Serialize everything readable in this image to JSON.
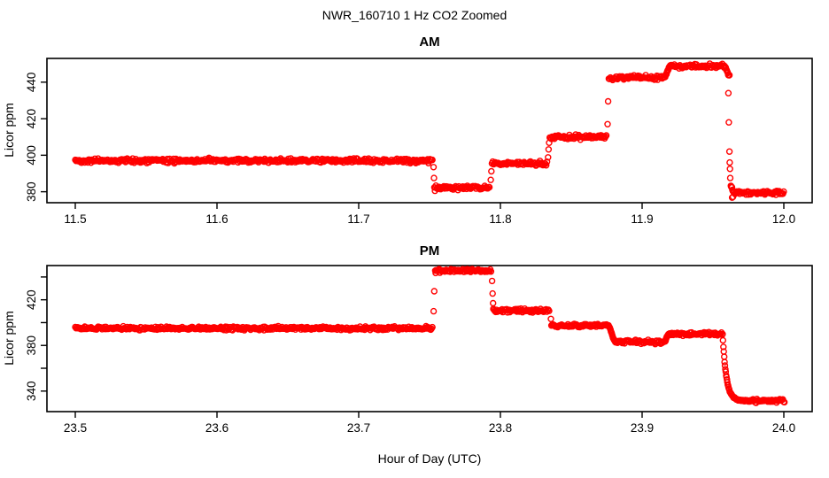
{
  "header": {
    "title": "NWR_160710  1 Hz CO2 Zoomed"
  },
  "footer": {
    "xlabel": "Hour of Day (UTC)"
  },
  "style": {
    "point_color": "#ff0000",
    "axis_color": "#000000",
    "background": "#ffffff",
    "marker": "open-circle",
    "marker_radius": 3.0,
    "marker_stroke": 1.4,
    "seed": 42,
    "sample_step_hours": 0.000555
  },
  "chart_data": [
    {
      "type": "scatter",
      "title": "AM",
      "ylabel": "Licor ppm",
      "series_name": "1 Hz CO2",
      "grid": false,
      "legend": "none",
      "xlim": [
        11.48,
        12.02
      ],
      "ylim": [
        374,
        453
      ],
      "xticks": [
        11.5,
        11.6,
        11.7,
        11.8,
        11.9,
        12.0
      ],
      "yticks": [
        {
          "v": 380,
          "label": "380"
        },
        {
          "v": 400,
          "label": "400"
        },
        {
          "v": 420,
          "label": "420"
        },
        {
          "v": 440,
          "label": "440"
        }
      ],
      "noise_sd": 0.55,
      "segments": [
        {
          "t0": 11.5,
          "t1": 11.7525,
          "level": 397.0
        },
        {
          "t0": 11.7534,
          "t1": 11.7928,
          "level": 382.3
        },
        {
          "t0": 11.794,
          "t1": 11.833,
          "level": 395.5
        },
        {
          "t0": 11.8348,
          "t1": 11.8752,
          "level": 410.0
        },
        {
          "t0": 11.8765,
          "t1": 11.9155,
          "level": 442.5
        },
        {
          "t0": 11.92,
          "t1": 11.958,
          "level": 448.8
        },
        {
          "t0": 11.965,
          "t1": 12.0005,
          "level": 379.5
        }
      ],
      "ramps": [
        {
          "shape": "smooth",
          "t0": 11.9155,
          "t1": 11.92,
          "v0": 442.5,
          "v1": 448.8
        },
        {
          "shape": "smooth",
          "t0": 11.958,
          "t1": 11.9618,
          "v0": 448.8,
          "v1": 443.5
        },
        {
          "shape": "smooth",
          "t0": 11.9626,
          "t1": 11.965,
          "v0": 383.0,
          "v1": 379.5
        }
      ],
      "points": [
        [
          11.7528,
          393.5
        ],
        [
          11.7531,
          387.5
        ],
        [
          11.7538,
          380.5
        ],
        [
          11.7932,
          386.5
        ],
        [
          11.7936,
          391.2
        ],
        [
          11.8336,
          398.8
        ],
        [
          11.834,
          403.2
        ],
        [
          11.8344,
          406.8
        ],
        [
          11.8756,
          417.0
        ],
        [
          11.876,
          429.5
        ],
        [
          11.9609,
          434.0
        ],
        [
          11.9612,
          418.0
        ],
        [
          11.9616,
          402.0
        ],
        [
          11.9618,
          396.0
        ],
        [
          11.962,
          392.5
        ],
        [
          11.9622,
          387.5
        ],
        [
          11.9635,
          376.8
        ],
        [
          11.9641,
          377.2
        ]
      ]
    },
    {
      "type": "scatter",
      "title": "PM",
      "ylabel": "Licor ppm",
      "series_name": "1 Hz CO2",
      "grid": false,
      "legend": "none",
      "xlim": [
        23.48,
        24.02
      ],
      "ylim": [
        322,
        450
      ],
      "xticks": [
        23.5,
        23.6,
        23.7,
        23.8,
        23.9,
        24.0
      ],
      "yticks": [
        {
          "v": 340,
          "label": "340"
        },
        {
          "v": 360,
          "label": ""
        },
        {
          "v": 380,
          "label": "380"
        },
        {
          "v": 400,
          "label": ""
        },
        {
          "v": 420,
          "label": "420"
        },
        {
          "v": 440,
          "label": ""
        }
      ],
      "noise_sd": 0.75,
      "segments": [
        {
          "t0": 23.5,
          "t1": 23.7525,
          "level": 395.0
        },
        {
          "t0": 23.754,
          "t1": 23.7935,
          "level": 445.5
        },
        {
          "t0": 23.795,
          "t1": 23.8345,
          "level": 410.5
        },
        {
          "t0": 23.836,
          "t1": 23.8758,
          "level": 397.5
        },
        {
          "t0": 23.8815,
          "t1": 23.9158,
          "level": 383.0
        },
        {
          "t0": 23.9188,
          "t1": 23.9568,
          "level": 390.0
        },
        {
          "t0": 23.976,
          "t1": 24.0005,
          "level": 331.5
        }
      ],
      "ramps": [
        {
          "shape": "smooth",
          "t0": 23.8758,
          "t1": 23.8815,
          "v0": 397.5,
          "v1": 383.0
        },
        {
          "shape": "smooth",
          "t0": 23.9158,
          "t1": 23.9188,
          "v0": 383.5,
          "v1": 390.0
        },
        {
          "shape": "exp",
          "t0": 23.9568,
          "t1": 23.976,
          "v0": 390.0,
          "v1": 331.5,
          "tau": 0.0026
        }
      ],
      "points": [
        [
          23.7529,
          410.0
        ],
        [
          23.7533,
          427.5
        ],
        [
          23.7543,
          443.5
        ],
        [
          23.7941,
          436.5
        ],
        [
          23.7945,
          425.5
        ],
        [
          23.7948,
          417.0
        ],
        [
          23.8356,
          403.2
        ]
      ]
    }
  ]
}
